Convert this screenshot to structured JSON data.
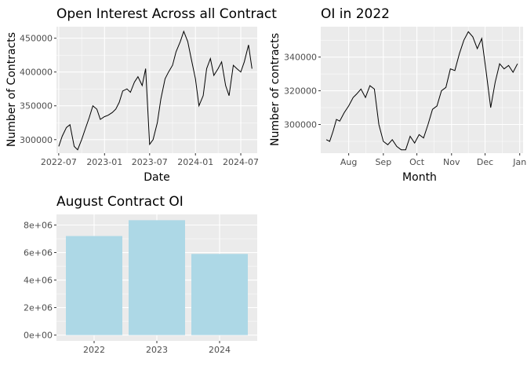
{
  "chart_data": [
    {
      "type": "line",
      "title": "Open Interest Across all Contract",
      "xlabel": "Date",
      "ylabel": "Number of Contracts",
      "x_ticks": [
        "2022-07",
        "2023-01",
        "2023-07",
        "2024-01",
        "2024-07"
      ],
      "y_ticks": [
        "300000",
        "350000",
        "400000",
        "450000"
      ],
      "xlim": [
        "2022-06-22",
        "2024-09-05"
      ],
      "ylim": [
        280000,
        467000
      ],
      "grid": true,
      "series": [
        {
          "x": [
            "2022-07-01",
            "2022-07-15",
            "2022-08-01",
            "2022-08-15",
            "2022-09-01",
            "2022-09-15",
            "2022-10-01",
            "2022-10-15",
            "2022-11-01",
            "2022-11-15",
            "2022-12-01",
            "2022-12-15",
            "2023-01-01",
            "2023-01-15",
            "2023-02-01",
            "2023-02-15",
            "2023-03-01",
            "2023-03-15",
            "2023-04-01",
            "2023-04-15",
            "2023-05-01",
            "2023-05-15",
            "2023-06-01",
            "2023-06-15",
            "2023-07-01",
            "2023-07-15",
            "2023-08-01",
            "2023-08-15",
            "2023-09-01",
            "2023-09-15",
            "2023-10-01",
            "2023-10-15",
            "2023-11-01",
            "2023-11-15",
            "2023-12-01",
            "2023-12-15",
            "2024-01-01",
            "2024-01-15",
            "2024-02-01",
            "2024-02-15",
            "2024-03-01",
            "2024-03-15",
            "2024-04-01",
            "2024-04-15",
            "2024-05-01",
            "2024-05-15",
            "2024-06-01",
            "2024-06-15",
            "2024-07-01",
            "2024-07-15",
            "2024-08-01",
            "2024-08-15"
          ],
          "values": [
            290000,
            305000,
            318000,
            322000,
            290000,
            285000,
            300000,
            315000,
            333000,
            350000,
            345000,
            330000,
            334000,
            336000,
            340000,
            345000,
            355000,
            372000,
            375000,
            370000,
            385000,
            393000,
            380000,
            405000,
            293000,
            300000,
            325000,
            360000,
            390000,
            400000,
            410000,
            430000,
            445000,
            460000,
            445000,
            420000,
            390000,
            350000,
            365000,
            405000,
            420000,
            395000,
            405000,
            415000,
            380000,
            365000,
            410000,
            405000,
            400000,
            415000,
            440000,
            405000
          ]
        }
      ]
    },
    {
      "type": "line",
      "title": "OI in 2022",
      "xlabel": "Month",
      "ylabel": "Number of contracts",
      "x_ticks": [
        "Aug",
        "Sep",
        "Oct",
        "Nov",
        "Dec",
        "Jan"
      ],
      "y_ticks": [
        "300000",
        "320000",
        "340000"
      ],
      "xlim": [
        "2022-07-07",
        "2023-01-04"
      ],
      "ylim": [
        283000,
        358000
      ],
      "grid": true,
      "series": [
        {
          "x": [
            "2022-07-12",
            "2022-07-15",
            "2022-07-18",
            "2022-07-21",
            "2022-07-24",
            "2022-07-28",
            "2022-08-01",
            "2022-08-05",
            "2022-08-08",
            "2022-08-12",
            "2022-08-16",
            "2022-08-20",
            "2022-08-24",
            "2022-08-28",
            "2022-09-01",
            "2022-09-05",
            "2022-09-09",
            "2022-09-13",
            "2022-09-17",
            "2022-09-21",
            "2022-09-25",
            "2022-09-29",
            "2022-10-03",
            "2022-10-07",
            "2022-10-11",
            "2022-10-15",
            "2022-10-19",
            "2022-10-23",
            "2022-10-27",
            "2022-10-31",
            "2022-11-04",
            "2022-11-08",
            "2022-11-12",
            "2022-11-16",
            "2022-11-20",
            "2022-11-24",
            "2022-11-28",
            "2022-12-02",
            "2022-12-06",
            "2022-12-10",
            "2022-12-14",
            "2022-12-18",
            "2022-12-22",
            "2022-12-26",
            "2022-12-30"
          ],
          "values": [
            291000,
            290000,
            296000,
            303000,
            302000,
            307000,
            311000,
            316000,
            318000,
            321000,
            316000,
            323000,
            321000,
            300000,
            290000,
            288000,
            291000,
            287000,
            285000,
            285000,
            293000,
            289000,
            294000,
            292000,
            300000,
            309000,
            311000,
            320000,
            322000,
            333000,
            332000,
            342000,
            350000,
            355000,
            352000,
            345000,
            351000,
            331000,
            310000,
            325000,
            336000,
            333000,
            335000,
            331000,
            336000
          ]
        }
      ]
    },
    {
      "type": "bar",
      "title": "August Contract OI",
      "xlabel": "",
      "ylabel": "",
      "categories": [
        "2022",
        "2023",
        "2024"
      ],
      "values": [
        7200000,
        8350000,
        5900000
      ],
      "y_ticks": [
        "0e+00",
        "2e+06",
        "4e+06",
        "6e+06",
        "8e+06"
      ],
      "ylim": [
        -420000,
        8770000
      ],
      "bar_color": "#add8e6",
      "grid": true
    }
  ],
  "colors": {
    "panel_bg": "#ebebeb",
    "grid_major": "#ffffff",
    "line": "#000000"
  }
}
